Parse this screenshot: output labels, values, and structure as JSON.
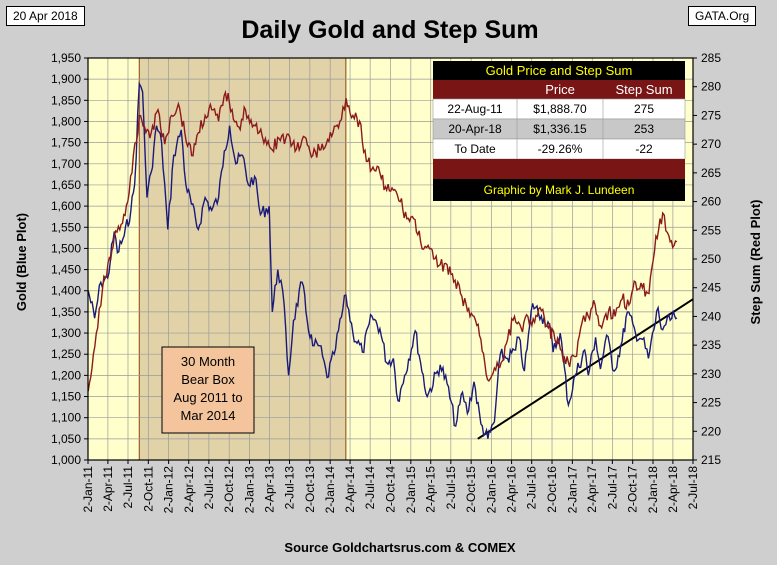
{
  "header": {
    "date": "20 Apr 2018",
    "source_tag": "GATA.Org"
  },
  "chart_data": {
    "type": "line",
    "title": "Daily Gold and Step Sum",
    "xlabel": "Source Goldchartsrus.com & COMEX",
    "ylabel_left": "Gold   (Blue Plot)",
    "ylabel_right": "Step Sum   (Red Plot)",
    "ylim_left": [
      1000,
      1950
    ],
    "ylim_right": [
      215,
      285
    ],
    "xlim": [
      "2-Jan-11",
      "2-Jul-18"
    ],
    "x_ticks": [
      "2-Jan-11",
      "2-Apr-11",
      "2-Jul-11",
      "2-Oct-11",
      "2-Jan-12",
      "2-Apr-12",
      "2-Jul-12",
      "2-Oct-12",
      "2-Jan-13",
      "2-Apr-13",
      "2-Jul-13",
      "2-Oct-13",
      "2-Jan-14",
      "2-Apr-14",
      "2-Jul-14",
      "2-Oct-14",
      "2-Jan-15",
      "2-Apr-15",
      "2-Jul-15",
      "2-Oct-15",
      "2-Jan-16",
      "2-Apr-16",
      "2-Jul-16",
      "2-Oct-16",
      "2-Jan-17",
      "2-Apr-17",
      "2-Jul-17",
      "2-Oct-17",
      "2-Jan-18",
      "2-Apr-18",
      "2-Jul-18"
    ],
    "y_ticks_left": [
      "1,000",
      "1,050",
      "1,100",
      "1,150",
      "1,200",
      "1,250",
      "1,300",
      "1,350",
      "1,400",
      "1,450",
      "1,500",
      "1,550",
      "1,600",
      "1,650",
      "1,700",
      "1,750",
      "1,800",
      "1,850",
      "1,900",
      "1,950"
    ],
    "y_ticks_right": [
      "215",
      "220",
      "225",
      "230",
      "235",
      "240",
      "245",
      "250",
      "255",
      "260",
      "265",
      "270",
      "275",
      "280",
      "285"
    ],
    "series": [
      {
        "name": "Gold",
        "color": "#1a1a7a",
        "axis": "left",
        "points": [
          [
            "2011-01-03",
            1400
          ],
          [
            "2011-02-01",
            1335
          ],
          [
            "2011-03-01",
            1420
          ],
          [
            "2011-04-01",
            1430
          ],
          [
            "2011-05-01",
            1540
          ],
          [
            "2011-05-15",
            1490
          ],
          [
            "2011-06-15",
            1530
          ],
          [
            "2011-07-15",
            1590
          ],
          [
            "2011-08-01",
            1650
          ],
          [
            "2011-08-22",
            1889
          ],
          [
            "2011-09-06",
            1870
          ],
          [
            "2011-09-26",
            1620
          ],
          [
            "2011-10-15",
            1680
          ],
          [
            "2011-11-08",
            1790
          ],
          [
            "2011-12-01",
            1750
          ],
          [
            "2011-12-29",
            1545
          ],
          [
            "2012-01-25",
            1720
          ],
          [
            "2012-02-28",
            1780
          ],
          [
            "2012-03-20",
            1650
          ],
          [
            "2012-05-15",
            1545
          ],
          [
            "2012-06-15",
            1620
          ],
          [
            "2012-07-15",
            1590
          ],
          [
            "2012-08-15",
            1620
          ],
          [
            "2012-09-10",
            1730
          ],
          [
            "2012-10-04",
            1790
          ],
          [
            "2012-11-01",
            1700
          ],
          [
            "2012-12-01",
            1720
          ],
          [
            "2012-12-28",
            1650
          ],
          [
            "2013-01-25",
            1670
          ],
          [
            "2013-02-20",
            1580
          ],
          [
            "2013-04-01",
            1600
          ],
          [
            "2013-04-15",
            1350
          ],
          [
            "2013-05-10",
            1450
          ],
          [
            "2013-06-01",
            1400
          ],
          [
            "2013-06-28",
            1200
          ],
          [
            "2013-07-20",
            1330
          ],
          [
            "2013-08-28",
            1420
          ],
          [
            "2013-09-20",
            1330
          ],
          [
            "2013-10-15",
            1270
          ],
          [
            "2013-11-15",
            1270
          ],
          [
            "2013-12-19",
            1195
          ],
          [
            "2014-01-20",
            1250
          ],
          [
            "2014-03-14",
            1390
          ],
          [
            "2014-04-15",
            1300
          ],
          [
            "2014-05-28",
            1255
          ],
          [
            "2014-07-10",
            1340
          ],
          [
            "2014-08-15",
            1310
          ],
          [
            "2014-09-15",
            1230
          ],
          [
            "2014-10-15",
            1240
          ],
          [
            "2014-11-05",
            1140
          ],
          [
            "2014-12-05",
            1200
          ],
          [
            "2015-01-22",
            1305
          ],
          [
            "2015-02-15",
            1230
          ],
          [
            "2015-03-17",
            1150
          ],
          [
            "2015-05-15",
            1225
          ],
          [
            "2015-06-15",
            1180
          ],
          [
            "2015-07-24",
            1080
          ],
          [
            "2015-08-24",
            1160
          ],
          [
            "2015-09-15",
            1110
          ],
          [
            "2015-10-15",
            1185
          ],
          [
            "2015-11-15",
            1085
          ],
          [
            "2015-12-17",
            1050
          ],
          [
            "2016-01-15",
            1090
          ],
          [
            "2016-02-11",
            1250
          ],
          [
            "2016-03-15",
            1240
          ],
          [
            "2016-04-20",
            1260
          ],
          [
            "2016-05-05",
            1290
          ],
          [
            "2016-05-30",
            1210
          ],
          [
            "2016-07-06",
            1370
          ],
          [
            "2016-08-15",
            1340
          ],
          [
            "2016-09-20",
            1320
          ],
          [
            "2016-10-07",
            1255
          ],
          [
            "2016-11-08",
            1300
          ],
          [
            "2016-12-15",
            1130
          ],
          [
            "2017-01-15",
            1200
          ],
          [
            "2017-02-27",
            1260
          ],
          [
            "2017-03-15",
            1200
          ],
          [
            "2017-04-17",
            1290
          ],
          [
            "2017-05-09",
            1215
          ],
          [
            "2017-06-06",
            1295
          ],
          [
            "2017-07-10",
            1210
          ],
          [
            "2017-08-15",
            1280
          ],
          [
            "2017-09-08",
            1350
          ],
          [
            "2017-10-15",
            1300
          ],
          [
            "2017-11-15",
            1285
          ],
          [
            "2017-12-12",
            1240
          ],
          [
            "2018-01-25",
            1360
          ],
          [
            "2018-02-08",
            1310
          ],
          [
            "2018-03-01",
            1320
          ],
          [
            "2018-04-10",
            1340
          ],
          [
            "2018-04-20",
            1336
          ]
        ]
      },
      {
        "name": "Step Sum",
        "color": "#8b1a1a",
        "axis": "right",
        "points": [
          [
            "2011-01-03",
            227
          ],
          [
            "2011-01-20",
            231
          ],
          [
            "2011-02-15",
            238
          ],
          [
            "2011-03-15",
            247
          ],
          [
            "2011-04-15",
            250
          ],
          [
            "2011-05-01",
            254
          ],
          [
            "2011-06-01",
            256
          ],
          [
            "2011-07-01",
            260
          ],
          [
            "2011-07-20",
            265
          ],
          [
            "2011-08-22",
            275
          ],
          [
            "2011-09-15",
            273
          ],
          [
            "2011-10-15",
            272
          ],
          [
            "2011-11-15",
            276
          ],
          [
            "2011-12-15",
            270
          ],
          [
            "2012-01-15",
            275
          ],
          [
            "2012-02-15",
            277
          ],
          [
            "2012-03-15",
            272
          ],
          [
            "2012-04-15",
            268
          ],
          [
            "2012-05-15",
            272
          ],
          [
            "2012-06-15",
            275
          ],
          [
            "2012-07-15",
            276
          ],
          [
            "2012-08-15",
            274
          ],
          [
            "2012-09-15",
            279
          ],
          [
            "2012-10-15",
            276
          ],
          [
            "2012-11-15",
            273
          ],
          [
            "2012-12-15",
            276
          ],
          [
            "2013-01-15",
            273
          ],
          [
            "2013-02-15",
            272
          ],
          [
            "2013-03-15",
            271
          ],
          [
            "2013-04-15",
            269
          ],
          [
            "2013-05-15",
            271
          ],
          [
            "2013-06-15",
            271
          ],
          [
            "2013-07-15",
            270
          ],
          [
            "2013-08-15",
            269
          ],
          [
            "2013-09-15",
            271
          ],
          [
            "2013-10-15",
            268
          ],
          [
            "2013-11-15",
            269
          ],
          [
            "2013-12-15",
            270
          ],
          [
            "2014-01-15",
            272
          ],
          [
            "2014-02-15",
            274
          ],
          [
            "2014-03-15",
            278
          ],
          [
            "2014-04-15",
            275
          ],
          [
            "2014-05-15",
            274
          ],
          [
            "2014-06-15",
            267
          ],
          [
            "2014-07-15",
            266
          ],
          [
            "2014-08-15",
            265
          ],
          [
            "2014-09-15",
            262
          ],
          [
            "2014-10-15",
            262
          ],
          [
            "2014-11-15",
            260
          ],
          [
            "2014-12-15",
            257
          ],
          [
            "2015-01-15",
            257
          ],
          [
            "2015-02-15",
            253
          ],
          [
            "2015-03-15",
            252
          ],
          [
            "2015-04-15",
            250
          ],
          [
            "2015-05-15",
            249
          ],
          [
            "2015-06-15",
            249
          ],
          [
            "2015-07-15",
            246
          ],
          [
            "2015-08-15",
            244
          ],
          [
            "2015-09-15",
            241
          ],
          [
            "2015-10-15",
            240
          ],
          [
            "2015-11-15",
            236
          ],
          [
            "2015-12-15",
            229
          ],
          [
            "2016-01-15",
            231
          ],
          [
            "2016-02-15",
            232
          ],
          [
            "2016-03-15",
            236
          ],
          [
            "2016-04-15",
            240
          ],
          [
            "2016-05-15",
            238
          ],
          [
            "2016-06-15",
            240
          ],
          [
            "2016-07-15",
            239
          ],
          [
            "2016-08-15",
            241
          ],
          [
            "2016-09-15",
            238
          ],
          [
            "2016-10-15",
            236
          ],
          [
            "2016-11-15",
            234
          ],
          [
            "2016-12-15",
            232
          ],
          [
            "2017-01-15",
            233
          ],
          [
            "2017-02-15",
            239
          ],
          [
            "2017-03-15",
            240
          ],
          [
            "2017-04-15",
            242
          ],
          [
            "2017-05-15",
            238
          ],
          [
            "2017-06-15",
            241
          ],
          [
            "2017-07-15",
            240
          ],
          [
            "2017-08-15",
            243
          ],
          [
            "2017-09-15",
            242
          ],
          [
            "2017-10-15",
            246
          ],
          [
            "2017-11-15",
            245
          ],
          [
            "2017-12-15",
            244
          ],
          [
            "2018-01-15",
            254
          ],
          [
            "2018-02-15",
            258
          ],
          [
            "2018-03-15",
            254
          ],
          [
            "2018-04-01",
            252
          ],
          [
            "2018-04-20",
            253
          ]
        ]
      }
    ],
    "trendline": {
      "name": "Support line",
      "color": "#000000",
      "axis": "left",
      "points": [
        [
          "2015-11-01",
          1050
        ],
        [
          "2018-07-02",
          1380
        ]
      ]
    },
    "bear_box": {
      "start": "2011-08-22",
      "end": "2014-03-14",
      "label_lines": [
        "30 Month",
        "Bear Box",
        "Aug 2011 to",
        "Mar 2014"
      ]
    },
    "legend_table": {
      "title": "Gold Price and Step Sum",
      "headers": [
        "",
        "Price",
        "Step Sum"
      ],
      "rows": [
        [
          "22-Aug-11",
          "$1,888.70",
          "275"
        ],
        [
          "20-Apr-18",
          "$1,336.15",
          "253"
        ],
        [
          "To Date",
          "-29.26%",
          "-22"
        ]
      ],
      "footer": "Graphic by Mark J. Lundeen"
    }
  }
}
